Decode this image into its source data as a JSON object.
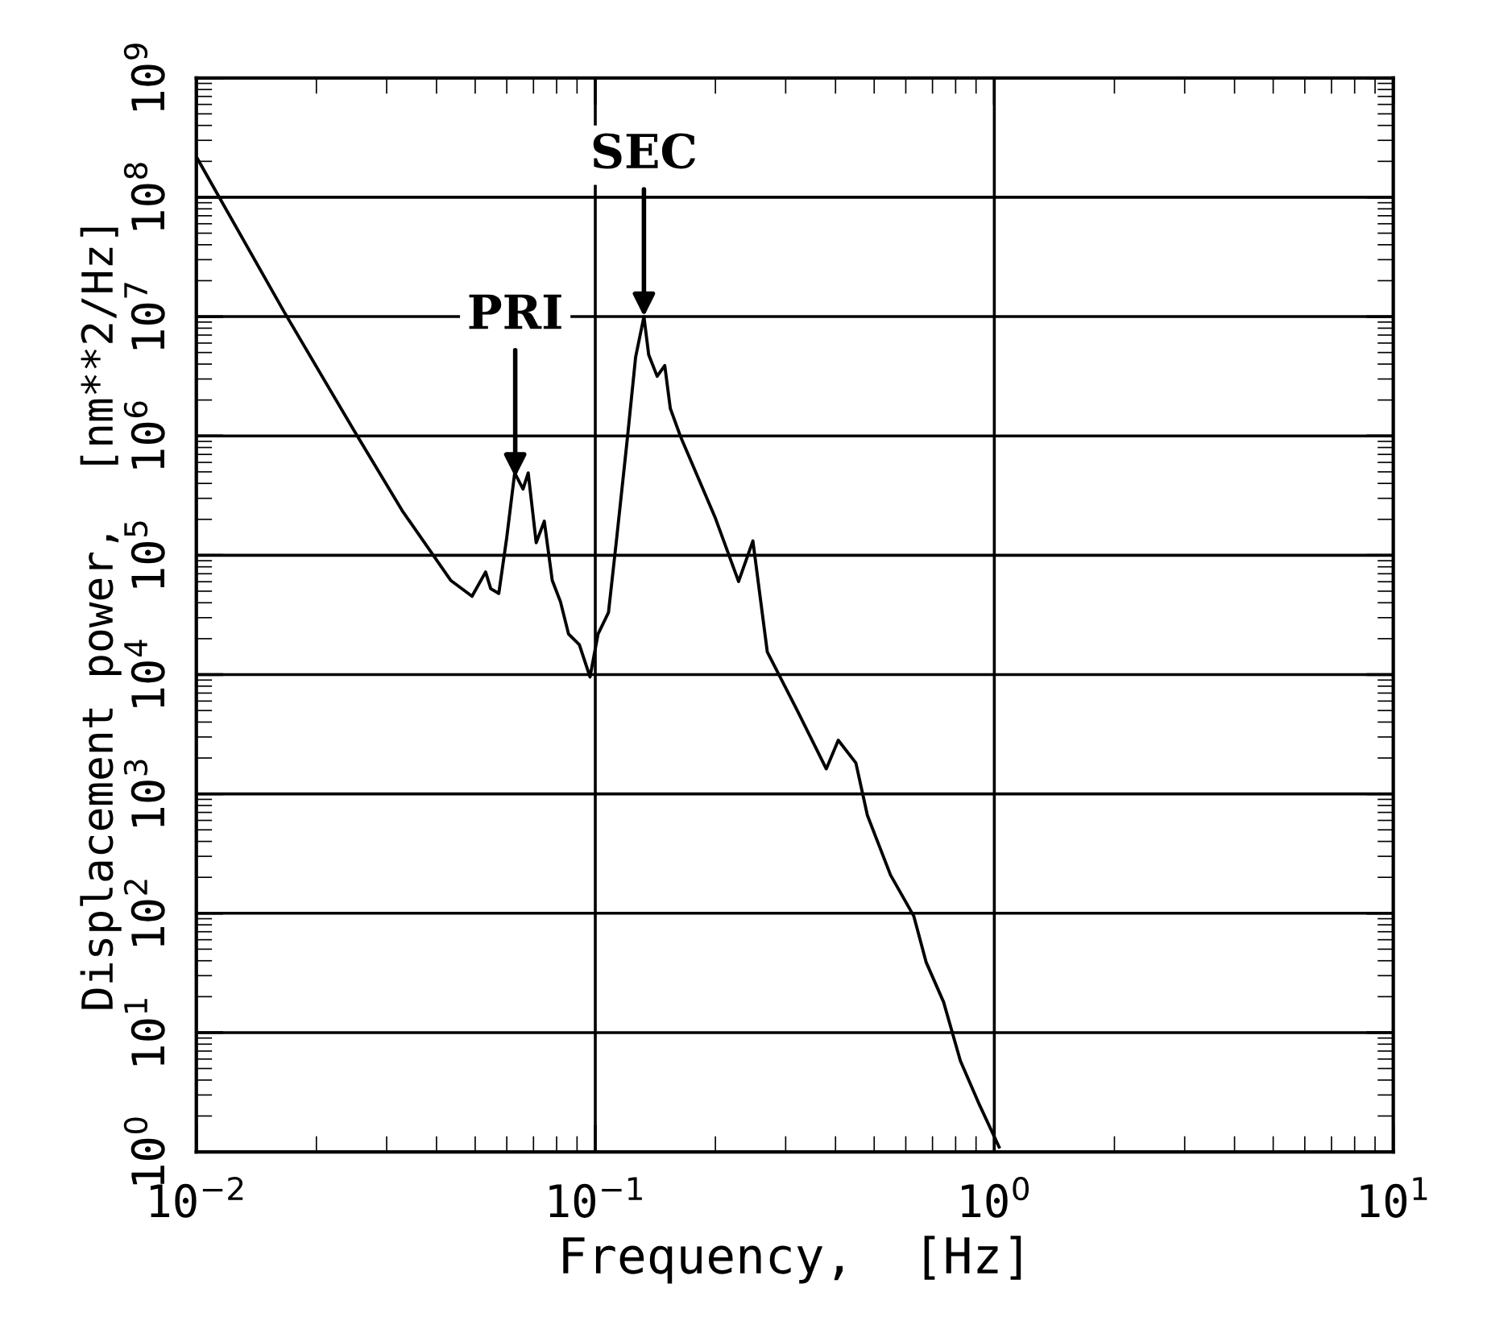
{
  "chart_data": {
    "type": "line",
    "xlabel": "Frequency,  [Hz]",
    "ylabel": "Displacement power,  [nm**2/Hz]",
    "log": "xy",
    "grid": true,
    "marker": "none",
    "line_style": "solid",
    "xlim": [
      0.01,
      10
    ],
    "ylim": [
      1,
      1000000000
    ],
    "xticks": [
      {
        "value": 0.01,
        "label": "10$^{−2}$"
      },
      {
        "value": 0.1,
        "label": "10$^{−1}$"
      },
      {
        "value": 1,
        "label": "10$^{0}$"
      },
      {
        "value": 10,
        "label": "10$^{1}$"
      }
    ],
    "yticks": [
      {
        "value": 1,
        "label": "10$^{0}$"
      },
      {
        "value": 10,
        "label": "10$^{1}$"
      },
      {
        "value": 100,
        "label": "10$^{2}$"
      },
      {
        "value": 1000,
        "label": "10$^{3}$"
      },
      {
        "value": 10000,
        "label": "10$^{4}$"
      },
      {
        "value": 100000,
        "label": "10$^{5}$"
      },
      {
        "value": 1000000,
        "label": "10$^{6}$"
      },
      {
        "value": 10000000,
        "label": "10$^{7}$"
      },
      {
        "value": 100000000,
        "label": "10$^{8}$"
      },
      {
        "value": 1000000000,
        "label": "10$^{9}$"
      }
    ],
    "series": [
      {
        "color": "#000000",
        "x": [
          0.01,
          0.0166,
          0.0248,
          0.0328,
          0.0434,
          0.0491,
          0.0531,
          0.0547,
          0.0573,
          0.06,
          0.0628,
          0.0659,
          0.0679,
          0.0711,
          0.0745,
          0.078,
          0.0818,
          0.0857,
          0.0912,
          0.097,
          0.1016,
          0.1079,
          0.1132,
          0.1205,
          0.1262,
          0.1324,
          0.1361,
          0.1429,
          0.1493,
          0.1542,
          0.1633,
          0.1995,
          0.2286,
          0.2483,
          0.2698,
          0.3206,
          0.3793,
          0.4064,
          0.4498,
          0.4808,
          0.5495,
          0.6281,
          0.6745,
          0.7464,
          0.8222,
          0.912,
          1.028
        ],
        "values": [
          218776162,
          10964782,
          1122018,
          237137,
          61659,
          45290,
          72444,
          52481,
          47863,
          141254,
          489779,
          358922,
          489779,
          127350,
          192752,
          61659,
          40738,
          21878,
          17783,
          9550,
          21878,
          33113,
          141254,
          1000000,
          4570882,
          10000000,
          4786301,
          3162278,
          3890451,
          1698244,
          1000000,
          208930,
          60256,
          131826,
          15488,
          5012,
          1622,
          2818,
          1820,
          661,
          209,
          95,
          39,
          18,
          5.8,
          2.6,
          1.1
        ]
      }
    ],
    "annotations": [
      {
        "text": "PRI",
        "x": 0.063,
        "y": 450000
      },
      {
        "text": "SEC",
        "x": 0.1324,
        "y": 10000000
      }
    ]
  }
}
